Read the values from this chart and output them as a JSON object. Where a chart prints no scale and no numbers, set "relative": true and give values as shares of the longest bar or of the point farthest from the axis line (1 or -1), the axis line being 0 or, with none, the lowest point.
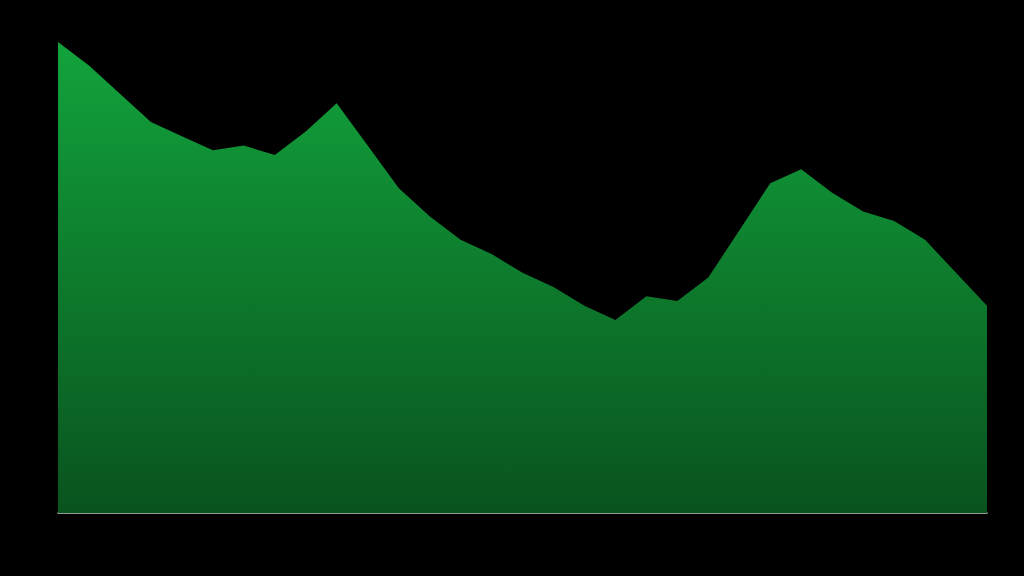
{
  "chart_data": {
    "type": "area",
    "relative": true,
    "color": "#12a33c",
    "grid": false,
    "marker": "none",
    "categories": [
      null,
      null,
      null,
      null,
      null,
      null,
      null,
      null,
      null,
      null,
      null,
      null,
      null,
      null,
      null,
      null,
      null,
      null,
      null,
      null,
      null,
      null,
      null,
      null,
      null,
      null,
      null,
      null,
      null,
      null,
      null
    ],
    "values": [
      1.0,
      0.95,
      0.89,
      0.83,
      0.8,
      0.77,
      0.78,
      0.76,
      0.81,
      0.87,
      0.78,
      0.69,
      0.63,
      0.58,
      0.55,
      0.51,
      0.48,
      0.44,
      0.41,
      0.46,
      0.45,
      0.5,
      0.6,
      0.7,
      0.73,
      0.68,
      0.64,
      0.62,
      0.58,
      0.51,
      0.44
    ]
  }
}
